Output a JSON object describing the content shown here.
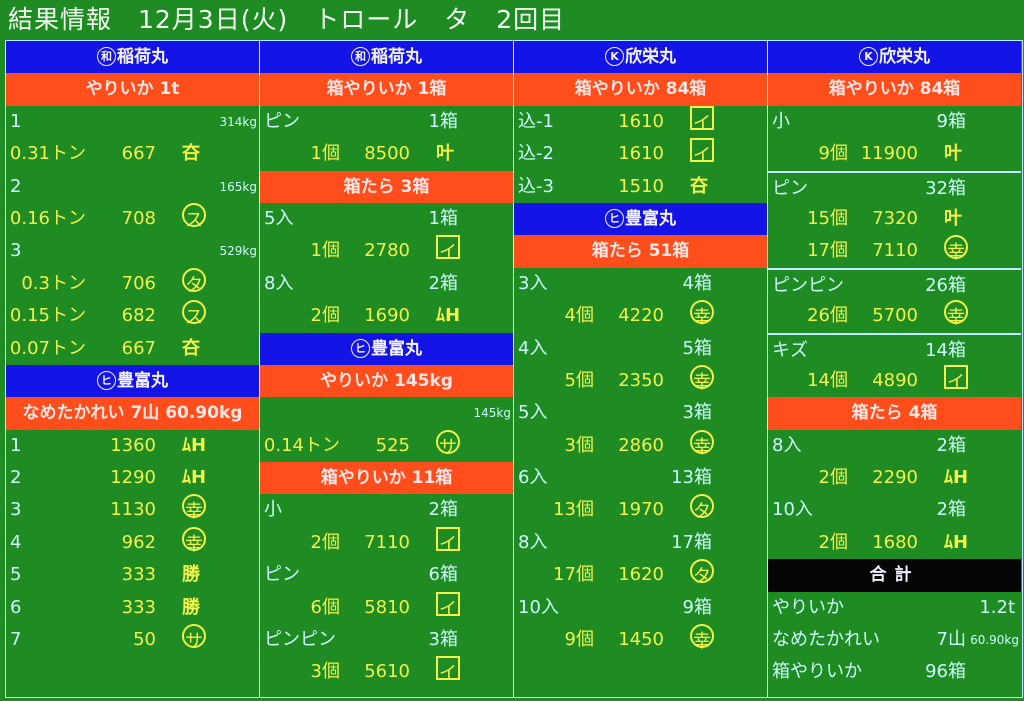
{
  "title": "結果情報　12月3日(火)　トロール　タ　2回目",
  "colors": {
    "background": "#1e8c22",
    "ship_header": "#1414e6",
    "category_header": "#ff4d1c",
    "total_header": "#050505",
    "price_text": "#f3f34a",
    "label_text": "#cffcff"
  },
  "columns": [
    {
      "blocks": [
        {
          "type": "ship",
          "circle": "和",
          "name": "稲荷丸"
        },
        {
          "type": "cat",
          "text": "やりいか 1t"
        },
        {
          "type": "row",
          "label": "1",
          "weight": "314kg"
        },
        {
          "type": "row",
          "qty": "0.31トン",
          "price": "667",
          "mark": {
            "glyph": "夻",
            "style": "plain"
          }
        },
        {
          "type": "row",
          "label": "2",
          "weight": "165kg"
        },
        {
          "type": "row",
          "qty": "0.16トン",
          "price": "708",
          "mark": {
            "glyph": "ス",
            "style": "circle"
          }
        },
        {
          "type": "row",
          "label": "3",
          "weight": "529kg"
        },
        {
          "type": "row",
          "qty": "0.3トン",
          "price": "706",
          "mark": {
            "glyph": "タ",
            "style": "circle"
          }
        },
        {
          "type": "row",
          "qty": "0.15トン",
          "price": "682",
          "mark": {
            "glyph": "ス",
            "style": "circle"
          }
        },
        {
          "type": "row",
          "qty": "0.07トン",
          "price": "667",
          "mark": {
            "glyph": "夻",
            "style": "plain"
          }
        },
        {
          "type": "ship",
          "circle": "ヒ",
          "name": "豊富丸"
        },
        {
          "type": "cat",
          "text": "なめたかれい 7山 60.90kg"
        },
        {
          "type": "row",
          "label": "1",
          "price": "1360",
          "mark": {
            "glyph": "ﾑH",
            "style": "plain"
          }
        },
        {
          "type": "row",
          "label": "2",
          "price": "1290",
          "mark": {
            "glyph": "ﾑH",
            "style": "plain"
          }
        },
        {
          "type": "row",
          "label": "3",
          "price": "1130",
          "mark": {
            "glyph": "幸",
            "style": "circle"
          }
        },
        {
          "type": "row",
          "label": "4",
          "price": "962",
          "mark": {
            "glyph": "幸",
            "style": "circle"
          }
        },
        {
          "type": "row",
          "label": "5",
          "price": "333",
          "mark": {
            "glyph": "勝",
            "style": "plain"
          }
        },
        {
          "type": "row",
          "label": "6",
          "price": "333",
          "mark": {
            "glyph": "勝",
            "style": "plain"
          }
        },
        {
          "type": "row",
          "label": "7",
          "price": "50",
          "mark": {
            "glyph": "サ",
            "style": "circle"
          }
        }
      ]
    },
    {
      "blocks": [
        {
          "type": "ship",
          "circle": "和",
          "name": "稲荷丸"
        },
        {
          "type": "cat",
          "text": "箱やりいか 1箱"
        },
        {
          "type": "row",
          "label": "ピン",
          "count": "1箱"
        },
        {
          "type": "row",
          "qty": "1個",
          "price": "8500",
          "mark": {
            "glyph": "叶",
            "style": "plain"
          }
        },
        {
          "type": "cat",
          "text": "箱たら 3箱"
        },
        {
          "type": "row",
          "label": "5入",
          "count": "1箱"
        },
        {
          "type": "row",
          "qty": "1個",
          "price": "2780",
          "mark": {
            "glyph": "イ",
            "style": "box"
          }
        },
        {
          "type": "row",
          "label": "8入",
          "count": "2箱"
        },
        {
          "type": "row",
          "qty": "2個",
          "price": "1690",
          "mark": {
            "glyph": "ﾑH",
            "style": "plain"
          }
        },
        {
          "type": "ship",
          "circle": "ヒ",
          "name": "豊富丸"
        },
        {
          "type": "cat",
          "text": "やりいか 145kg"
        },
        {
          "type": "row",
          "weight": "145kg"
        },
        {
          "type": "row",
          "qty": "0.14トン",
          "price": "525",
          "mark": {
            "glyph": "サ",
            "style": "circle"
          }
        },
        {
          "type": "cat",
          "text": "箱やりいか 11箱"
        },
        {
          "type": "row",
          "label": "小",
          "count": "2箱"
        },
        {
          "type": "row",
          "qty": "2個",
          "price": "7110",
          "mark": {
            "glyph": "イ",
            "style": "box"
          }
        },
        {
          "type": "row",
          "label": "ピン",
          "count": "6箱"
        },
        {
          "type": "row",
          "qty": "6個",
          "price": "5810",
          "mark": {
            "glyph": "イ",
            "style": "box"
          }
        },
        {
          "type": "row",
          "label": "ピンピン",
          "count": "3箱"
        },
        {
          "type": "row",
          "qty": "3個",
          "price": "5610",
          "mark": {
            "glyph": "イ",
            "style": "box"
          }
        }
      ]
    },
    {
      "blocks": [
        {
          "type": "ship",
          "circle": "K",
          "name": "欣栄丸"
        },
        {
          "type": "cat",
          "text": "箱やりいか 84箱"
        },
        {
          "type": "row",
          "label": "込-1",
          "price": "1610",
          "mark": {
            "glyph": "イ",
            "style": "box"
          }
        },
        {
          "type": "row",
          "label": "込-2",
          "price": "1610",
          "mark": {
            "glyph": "イ",
            "style": "box"
          }
        },
        {
          "type": "row",
          "label": "込-3",
          "price": "1510",
          "mark": {
            "glyph": "夻",
            "style": "plain"
          }
        },
        {
          "type": "ship",
          "circle": "ヒ",
          "name": "豊富丸"
        },
        {
          "type": "cat",
          "text": "箱たら 51箱"
        },
        {
          "type": "row",
          "label": "3入",
          "count": "4箱"
        },
        {
          "type": "row",
          "qty": "4個",
          "price": "4220",
          "mark": {
            "glyph": "幸",
            "style": "circle"
          }
        },
        {
          "type": "row",
          "label": "4入",
          "count": "5箱"
        },
        {
          "type": "row",
          "qty": "5個",
          "price": "2350",
          "mark": {
            "glyph": "幸",
            "style": "circle"
          }
        },
        {
          "type": "row",
          "label": "5入",
          "count": "3箱"
        },
        {
          "type": "row",
          "qty": "3個",
          "price": "2860",
          "mark": {
            "glyph": "幸",
            "style": "circle"
          }
        },
        {
          "type": "row",
          "label": "6入",
          "count": "13箱"
        },
        {
          "type": "row",
          "qty": "13個",
          "price": "1970",
          "mark": {
            "glyph": "タ",
            "style": "circle"
          }
        },
        {
          "type": "row",
          "label": "8入",
          "count": "17箱"
        },
        {
          "type": "row",
          "qty": "17個",
          "price": "1620",
          "mark": {
            "glyph": "タ",
            "style": "circle"
          }
        },
        {
          "type": "row",
          "label": "10入",
          "count": "9箱"
        },
        {
          "type": "row",
          "qty": "9個",
          "price": "1450",
          "mark": {
            "glyph": "幸",
            "style": "circle"
          }
        }
      ]
    },
    {
      "blocks": [
        {
          "type": "ship",
          "circle": "K",
          "name": "欣栄丸"
        },
        {
          "type": "cat",
          "text": "箱やりいか 84箱"
        },
        {
          "type": "row",
          "label": "小",
          "count": "9箱"
        },
        {
          "type": "row",
          "qty": "9個",
          "price": "11900",
          "mark": {
            "glyph": "叶",
            "style": "plain"
          }
        },
        {
          "type": "row",
          "label": "ピン",
          "count": "32箱",
          "divider": true
        },
        {
          "type": "row",
          "qty": "15個",
          "price": "7320",
          "mark": {
            "glyph": "叶",
            "style": "plain"
          }
        },
        {
          "type": "row",
          "qty": "17個",
          "price": "7110",
          "mark": {
            "glyph": "幸",
            "style": "circle"
          }
        },
        {
          "type": "row",
          "label": "ピンピン",
          "count": "26箱",
          "divider": true
        },
        {
          "type": "row",
          "qty": "26個",
          "price": "5700",
          "mark": {
            "glyph": "幸",
            "style": "circle"
          }
        },
        {
          "type": "row",
          "label": "キズ",
          "count": "14箱",
          "divider": true
        },
        {
          "type": "row",
          "qty": "14個",
          "price": "4890",
          "mark": {
            "glyph": "イ",
            "style": "box"
          }
        },
        {
          "type": "cat",
          "text": "箱たら 4箱"
        },
        {
          "type": "row",
          "label": "8入",
          "count": "2箱"
        },
        {
          "type": "row",
          "qty": "2個",
          "price": "2290",
          "mark": {
            "glyph": "ﾑH",
            "style": "plain"
          }
        },
        {
          "type": "row",
          "label": "10入",
          "count": "2箱"
        },
        {
          "type": "row",
          "qty": "2個",
          "price": "1680",
          "mark": {
            "glyph": "ﾑH",
            "style": "plain"
          }
        },
        {
          "type": "total",
          "text": "合計"
        },
        {
          "type": "row",
          "label": "やりいか",
          "big": "1.2t"
        },
        {
          "type": "row",
          "label": "なめたかれい",
          "count": "7山",
          "weight": "60.90kg"
        },
        {
          "type": "row",
          "label": "箱やりいか",
          "count": "96箱"
        }
      ]
    }
  ]
}
